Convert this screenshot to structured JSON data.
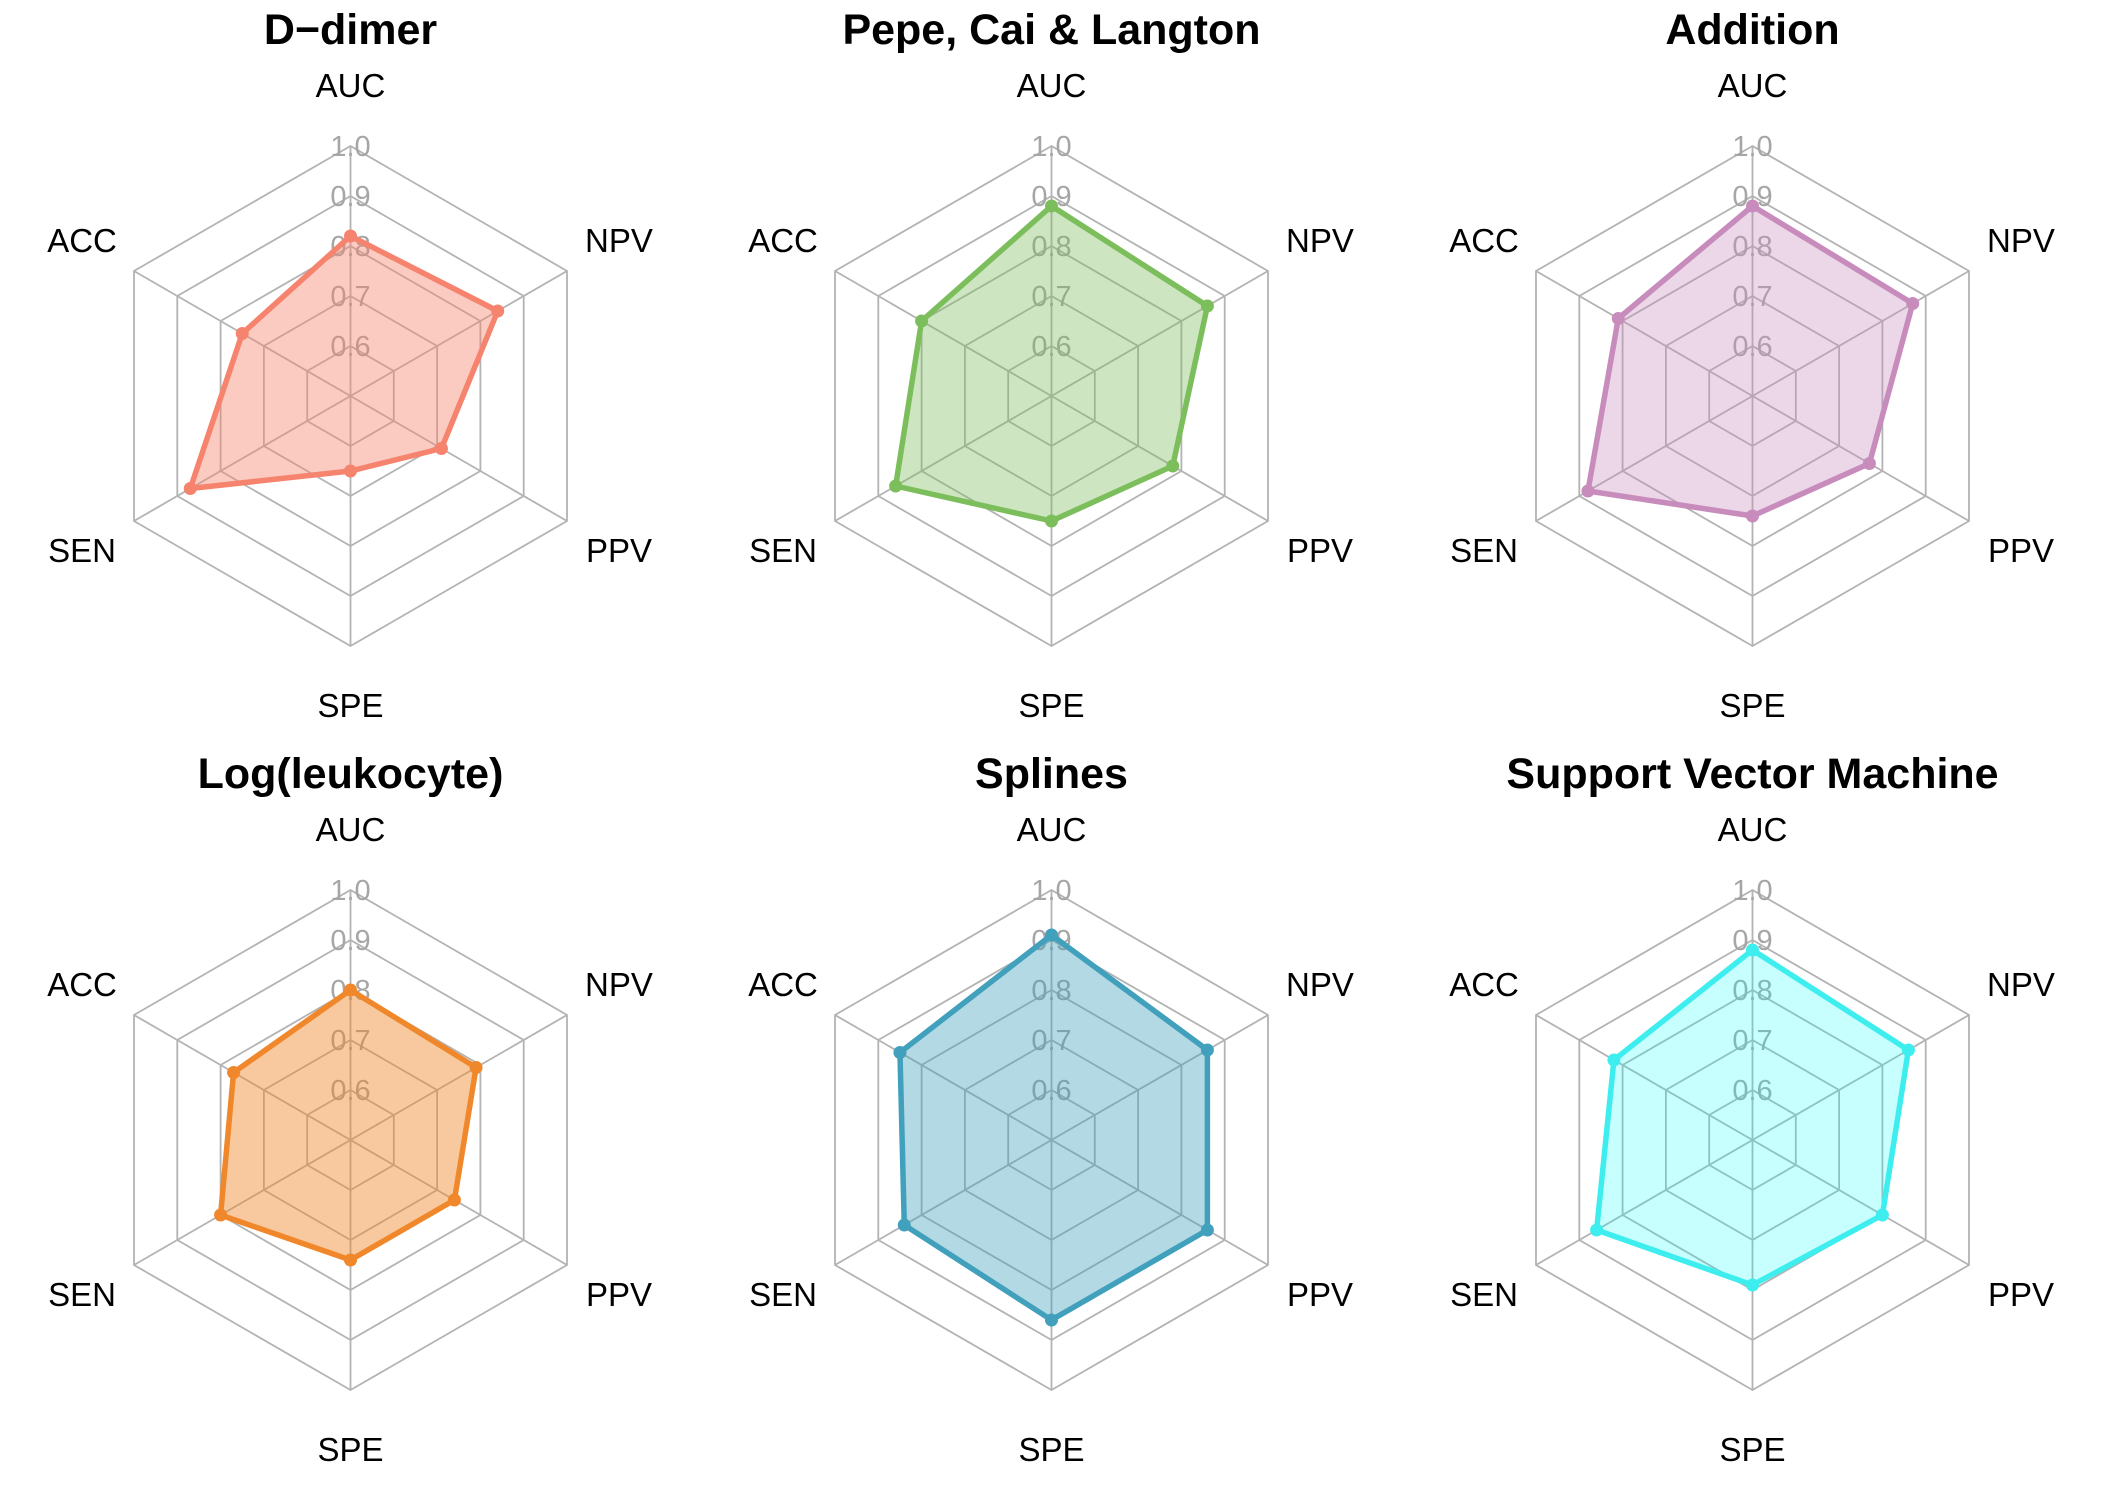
{
  "figure": {
    "background": "#ffffff",
    "grid_color": "#b3b3b3",
    "tick_color": "#a6a6a6",
    "axis_label_color": "#000000"
  },
  "chart_data": {
    "type": "radar",
    "layout": {
      "rows": 2,
      "cols": 3,
      "legend": "none",
      "grid": "hexagonal, 5 rings + 6 spokes"
    },
    "axes": [
      "AUC",
      "NPV",
      "PPV",
      "SPE",
      "SEN",
      "ACC"
    ],
    "scale": {
      "min": 0.5,
      "max": 1.0,
      "rings": [
        0.6,
        0.7,
        0.8,
        0.9,
        1.0
      ],
      "tick_labels": [
        "1.0",
        "0.9",
        "0.8",
        "0.7",
        "0.6"
      ],
      "tick_values": [
        1.0,
        0.9,
        0.8,
        0.7,
        0.6
      ]
    },
    "charts": [
      {
        "title": "D−dimer",
        "line_color": "#f6836d",
        "fill_color": "rgba(246,131,109,0.42)",
        "values": {
          "AUC": 0.82,
          "NPV": 0.84,
          "PPV": 0.71,
          "SPE": 0.65,
          "SEN": 0.87,
          "ACC": 0.75
        }
      },
      {
        "title": "Pepe, Cai & Langton",
        "line_color": "#7cbe5b",
        "fill_color": "rgba(124,190,91,0.38)",
        "values": {
          "AUC": 0.88,
          "NPV": 0.86,
          "PPV": 0.78,
          "SPE": 0.75,
          "SEN": 0.86,
          "ACC": 0.8
        }
      },
      {
        "title": "Addition",
        "line_color": "#c88cbc",
        "fill_color": "rgba(200,140,188,0.35)",
        "values": {
          "AUC": 0.88,
          "NPV": 0.87,
          "PPV": 0.77,
          "SPE": 0.74,
          "SEN": 0.88,
          "ACC": 0.81
        }
      },
      {
        "title": "Log(leukocyte)",
        "line_color": "#f0882b",
        "fill_color": "rgba(240,136,43,0.45)",
        "values": {
          "AUC": 0.8,
          "NPV": 0.79,
          "PPV": 0.74,
          "SPE": 0.74,
          "SEN": 0.8,
          "ACC": 0.77
        }
      },
      {
        "title": "Splines",
        "line_color": "#41a0bc",
        "fill_color": "rgba(65,160,188,0.40)",
        "values": {
          "AUC": 0.91,
          "NPV": 0.86,
          "PPV": 0.86,
          "SPE": 0.86,
          "SEN": 0.84,
          "ACC": 0.85
        }
      },
      {
        "title": "Support Vector Machine",
        "line_color": "#3eeeee",
        "fill_color": "rgba(0,255,255,0.22)",
        "values": {
          "AUC": 0.88,
          "NPV": 0.86,
          "PPV": 0.8,
          "SPE": 0.79,
          "SEN": 0.86,
          "ACC": 0.82
        }
      }
    ]
  }
}
